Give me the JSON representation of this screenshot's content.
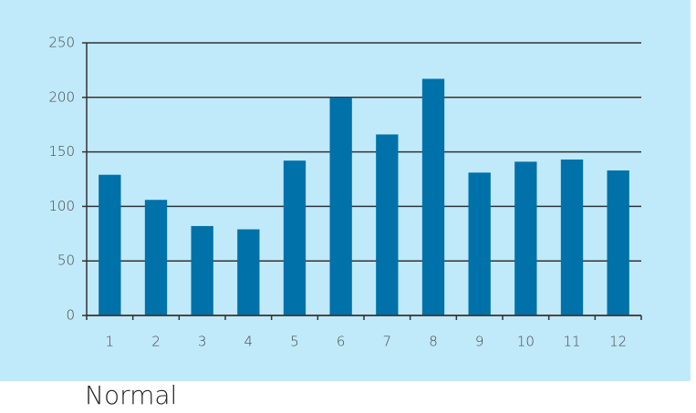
{
  "chart_data": {
    "type": "bar",
    "categories": [
      "1",
      "2",
      "3",
      "4",
      "5",
      "6",
      "7",
      "8",
      "9",
      "10",
      "11",
      "12"
    ],
    "values": [
      129,
      106,
      82,
      79,
      142,
      200,
      166,
      217,
      131,
      141,
      143,
      133
    ],
    "color": "#0071a9",
    "ylim": [
      0,
      250
    ],
    "yticks": [
      0,
      50,
      100,
      150,
      200,
      250
    ],
    "grid": true,
    "caption": "Normal"
  }
}
